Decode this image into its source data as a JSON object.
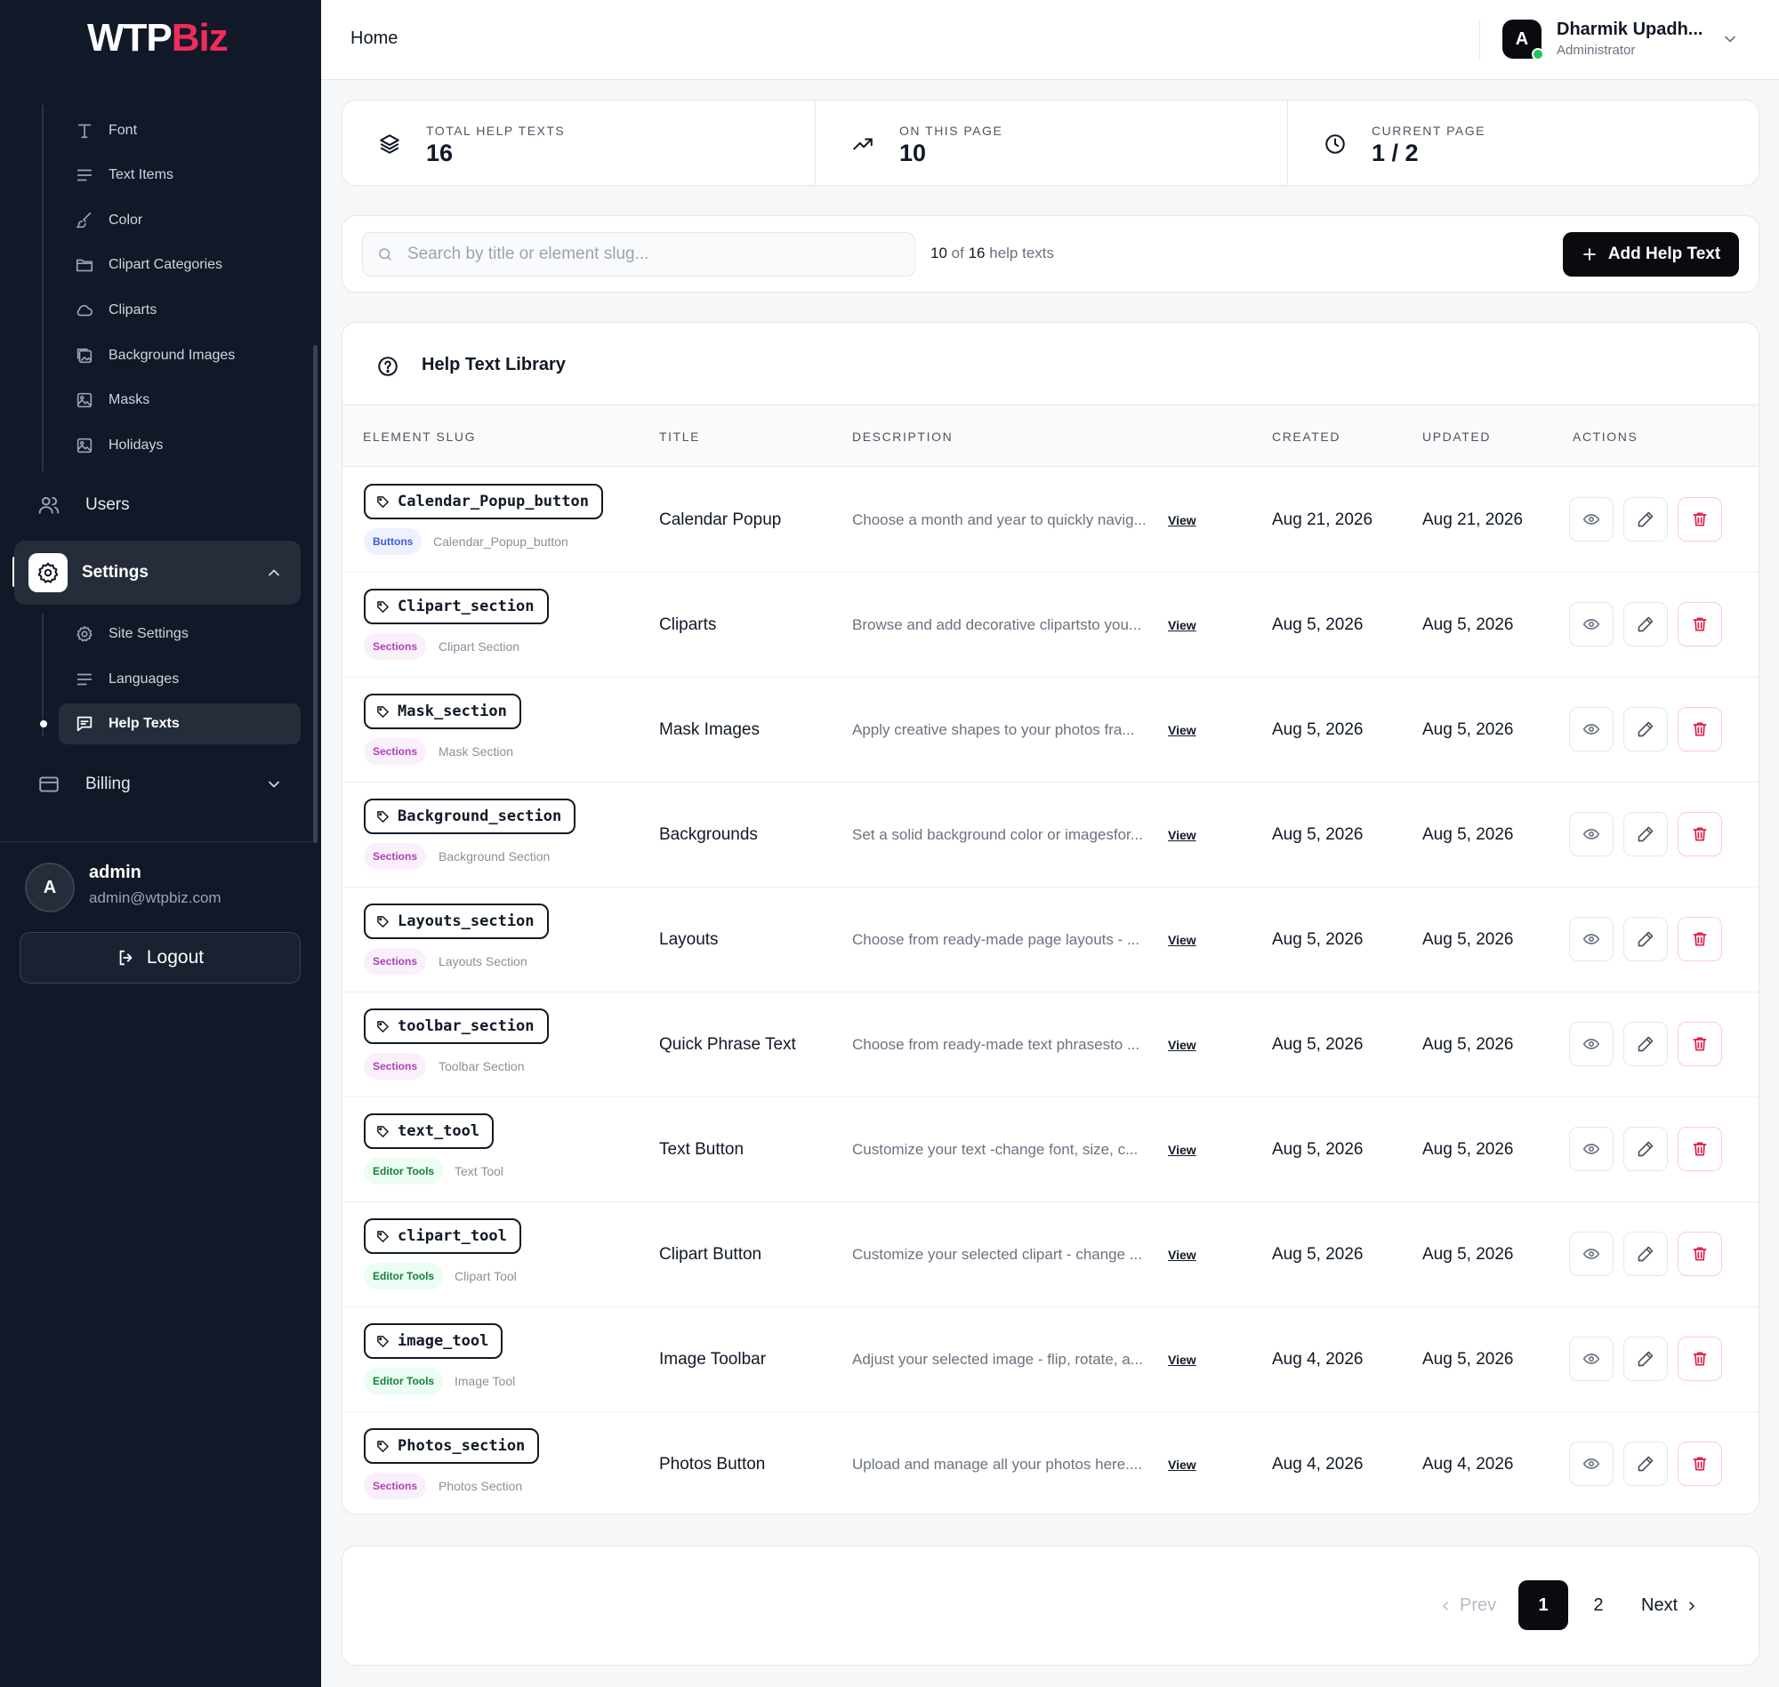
{
  "brand": {
    "logo_white": "WTP",
    "logo_accent": "Biz"
  },
  "sidebar": {
    "submenu_top": [
      {
        "label": "Font",
        "icon": "font-icon"
      },
      {
        "label": "Text Items",
        "icon": "text-lines-icon"
      },
      {
        "label": "Color",
        "icon": "brush-icon"
      },
      {
        "label": "Clipart Categories",
        "icon": "folder-icon"
      },
      {
        "label": "Cliparts",
        "icon": "cloud-icon"
      },
      {
        "label": "Background Images",
        "icon": "images-icon"
      },
      {
        "label": "Masks",
        "icon": "image-icon"
      },
      {
        "label": "Holidays",
        "icon": "image-icon"
      }
    ],
    "users_label": "Users",
    "settings_label": "Settings",
    "settings_sub": [
      {
        "label": "Site Settings",
        "icon": "gear-icon"
      },
      {
        "label": "Languages",
        "icon": "text-lines-icon"
      },
      {
        "label": "Help Texts",
        "icon": "message-icon"
      }
    ],
    "billing_label": "Billing",
    "profile": {
      "initial": "A",
      "name": "admin",
      "email": "admin@wtpbiz.com"
    },
    "logout_label": "Logout"
  },
  "header": {
    "breadcrumb": "Home",
    "user": {
      "initial": "A",
      "name": "Dharmik Upadh...",
      "role": "Administrator"
    }
  },
  "stats": [
    {
      "label": "TOTAL HELP TEXTS",
      "value": "16",
      "icon": "layers-icon"
    },
    {
      "label": "ON THIS PAGE",
      "value": "10",
      "icon": "trending-up-icon"
    },
    {
      "label": "CURRENT PAGE",
      "value": "1 / 2",
      "icon": "clock-icon"
    }
  ],
  "search": {
    "placeholder": "Search by title or element slug...",
    "count_shown": "10",
    "count_of": "of",
    "count_total": "16",
    "count_suffix": "help texts"
  },
  "add_button_label": "Add Help Text",
  "library": {
    "title": "Help Text Library",
    "columns": [
      "ELEMENT SLUG",
      "TITLE",
      "DESCRIPTION",
      "CREATED",
      "UPDATED",
      "ACTIONS"
    ],
    "view_label": "View",
    "rows": [
      {
        "slug": "Calendar_Popup_button",
        "category": "Buttons",
        "cat_class": "buttons",
        "subtitle": "Calendar_Popup_button",
        "title": "Calendar Popup",
        "description": "Choose a month and year to quickly navig...",
        "created": "Aug 21, 2026",
        "updated": "Aug 21, 2026"
      },
      {
        "slug": "Clipart_section",
        "category": "Sections",
        "cat_class": "sections",
        "subtitle": "Clipart Section",
        "title": "Cliparts",
        "description": "Browse and add decorative clipartsto you...",
        "created": "Aug 5, 2026",
        "updated": "Aug 5, 2026"
      },
      {
        "slug": "Mask_section",
        "category": "Sections",
        "cat_class": "sections",
        "subtitle": "Mask Section",
        "title": "Mask Images",
        "description": "Apply creative shapes to your photos fra...",
        "created": "Aug 5, 2026",
        "updated": "Aug 5, 2026"
      },
      {
        "slug": "Background_section",
        "category": "Sections",
        "cat_class": "sections",
        "subtitle": "Background Section",
        "title": "Backgrounds",
        "description": "Set a solid background color or imagesfor...",
        "created": "Aug 5, 2026",
        "updated": "Aug 5, 2026"
      },
      {
        "slug": "Layouts_section",
        "category": "Sections",
        "cat_class": "sections",
        "subtitle": "Layouts Section",
        "title": "Layouts",
        "description": "Choose from ready-made page layouts - ...",
        "created": "Aug 5, 2026",
        "updated": "Aug 5, 2026"
      },
      {
        "slug": "toolbar_section",
        "category": "Sections",
        "cat_class": "sections",
        "subtitle": "Toolbar Section",
        "title": "Quick Phrase Text",
        "description": "Choose from ready-made text phrasesto ...",
        "created": "Aug 5, 2026",
        "updated": "Aug 5, 2026"
      },
      {
        "slug": "text_tool",
        "category": "Editor Tools",
        "cat_class": "tools",
        "subtitle": "Text Tool",
        "title": "Text Button",
        "description": "Customize your text -change font, size, c...",
        "created": "Aug 5, 2026",
        "updated": "Aug 5, 2026"
      },
      {
        "slug": "clipart_tool",
        "category": "Editor Tools",
        "cat_class": "tools",
        "subtitle": "Clipart Tool",
        "title": "Clipart Button",
        "description": "Customize your selected clipart - change ...",
        "created": "Aug 5, 2026",
        "updated": "Aug 5, 2026"
      },
      {
        "slug": "image_tool",
        "category": "Editor Tools",
        "cat_class": "tools",
        "subtitle": "Image Tool",
        "title": "Image Toolbar",
        "description": "Adjust your selected image - flip, rotate, a...",
        "created": "Aug 4, 2026",
        "updated": "Aug 5, 2026"
      },
      {
        "slug": "Photos_section",
        "category": "Sections",
        "cat_class": "sections",
        "subtitle": "Photos Section",
        "title": "Photos Button",
        "description": "Upload and manage all your photos here....",
        "created": "Aug 4, 2026",
        "updated": "Aug 4, 2026"
      }
    ]
  },
  "pagination": {
    "prev_label": "Prev",
    "pages": [
      "1",
      "2"
    ],
    "current": "1",
    "next_label": "Next"
  },
  "colors": {
    "sidebar_bg": "#111827",
    "accent": "#ef2c5c",
    "primary_button": "#0b0b0f",
    "online": "#22c55e",
    "delete": "#e11d48"
  }
}
